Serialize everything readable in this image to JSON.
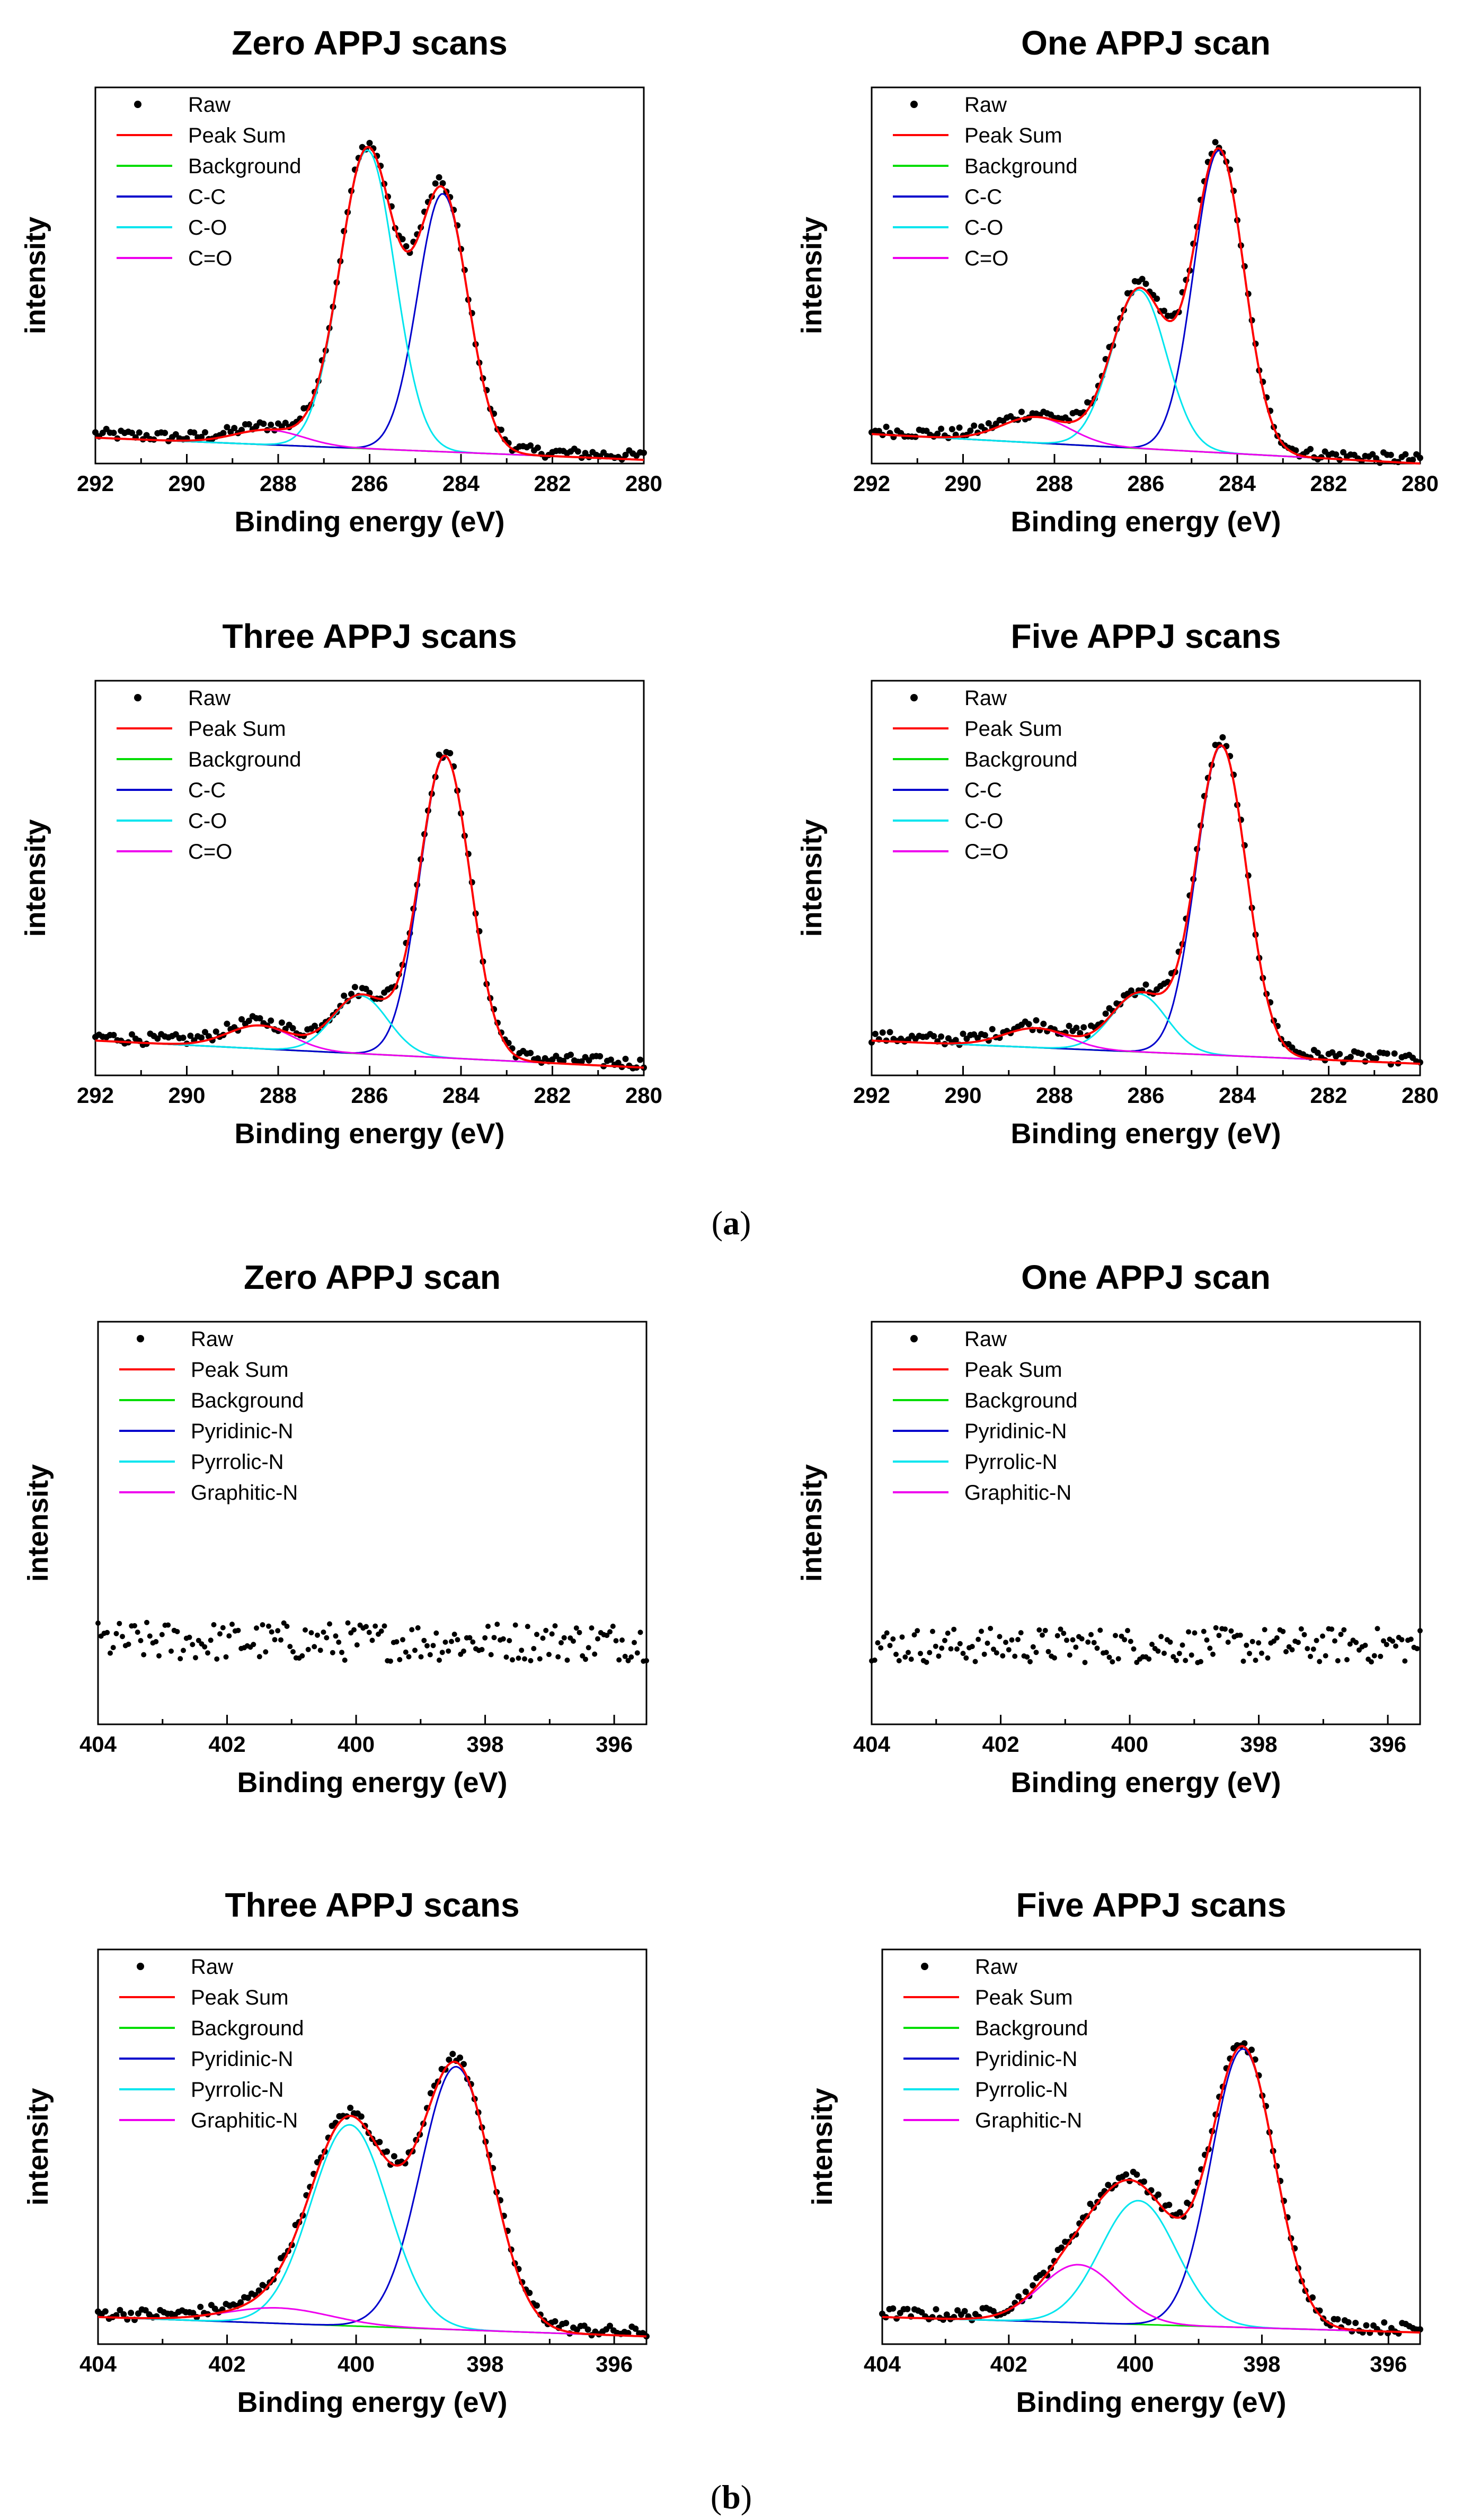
{
  "figure": {
    "caption_a": "a",
    "caption_b": "b"
  },
  "chart_data": [
    {
      "type": "line",
      "title": "Zero APPJ scans",
      "xlabel": "Binding energy (eV)",
      "ylabel": "intensity",
      "xlim": [
        292,
        280
      ],
      "ylim": [
        0,
        1
      ],
      "x_ticks": [
        "292",
        "290",
        "288",
        "286",
        "284",
        "282",
        "280"
      ],
      "legend_position": "top-left",
      "legend": [
        "Raw",
        " Peak Sum",
        "Background",
        "C-C",
        "C-O",
        "C=O"
      ],
      "colors": {
        "raw": "#000000",
        "sum": "#ff0000",
        "background": "#00dd00",
        "c1": "#0000cc",
        "c2": "#00e5ee",
        "c3": "#ee00ee"
      },
      "background": [
        0.07,
        0.01
      ],
      "components": [
        {
          "name": "C-C",
          "center": 284.4,
          "height": 0.7,
          "sigma": 0.55
        },
        {
          "name": "C-O",
          "center": 286.05,
          "height": 0.81,
          "sigma": 0.6
        },
        {
          "name": "C=O",
          "center": 288.2,
          "height": 0.04,
          "sigma": 0.75
        }
      ]
    },
    {
      "type": "line",
      "title": "One APPJ scan",
      "xlabel": "Binding energy (eV)",
      "ylabel": "intensity",
      "xlim": [
        292,
        280
      ],
      "ylim": [
        0,
        1
      ],
      "x_ticks": [
        "292",
        "290",
        "288",
        "286",
        "284",
        "282",
        "280"
      ],
      "legend_position": "top-left",
      "legend": [
        "Raw",
        " Peak Sum",
        "Background",
        "C-C",
        "C-O",
        "C=O"
      ],
      "colors": {
        "raw": "#000000",
        "sum": "#ff0000",
        "background": "#00dd00",
        "c1": "#0000cc",
        "c2": "#00e5ee",
        "c3": "#ee00ee"
      },
      "background": [
        0.08,
        0.0
      ],
      "components": [
        {
          "name": "C-C",
          "center": 284.4,
          "height": 0.82,
          "sigma": 0.55
        },
        {
          "name": "C-O",
          "center": 286.15,
          "height": 0.43,
          "sigma": 0.6
        },
        {
          "name": "C=O",
          "center": 288.4,
          "height": 0.07,
          "sigma": 0.75
        }
      ]
    },
    {
      "type": "line",
      "title": "Three APPJ scans",
      "xlabel": "Binding energy (eV)",
      "ylabel": "intensity",
      "xlim": [
        292,
        280
      ],
      "ylim": [
        0,
        1
      ],
      "x_ticks": [
        "292",
        "290",
        "288",
        "286",
        "284",
        "282",
        "280"
      ],
      "legend_position": "top-left",
      "legend": [
        "Raw",
        " Peak Sum",
        "Background",
        "C-C",
        "C-O",
        "C=O"
      ],
      "colors": {
        "raw": "#000000",
        "sum": "#ff0000",
        "background": "#00dd00",
        "c1": "#0000cc",
        "c2": "#00e5ee",
        "c3": "#ee00ee"
      },
      "background": [
        0.09,
        0.02
      ],
      "components": [
        {
          "name": "C-C",
          "center": 284.35,
          "height": 0.78,
          "sigma": 0.55
        },
        {
          "name": "C-O",
          "center": 286.2,
          "height": 0.15,
          "sigma": 0.6
        },
        {
          "name": "C=O",
          "center": 288.4,
          "height": 0.06,
          "sigma": 0.7
        }
      ]
    },
    {
      "type": "line",
      "title": "Five APPJ scans",
      "xlabel": "Binding energy (eV)",
      "ylabel": "intensity",
      "xlim": [
        292,
        280
      ],
      "ylim": [
        0,
        1
      ],
      "x_ticks": [
        "292",
        "290",
        "288",
        "286",
        "284",
        "282",
        "280"
      ],
      "legend_position": "top-left",
      "legend": [
        "Raw",
        " Peak Sum",
        "Background",
        "C-C",
        "C-O",
        "C=O"
      ],
      "colors": {
        "raw": "#000000",
        "sum": "#ff0000",
        "background": "#00dd00",
        "c1": "#0000cc",
        "c2": "#00e5ee",
        "c3": "#ee00ee"
      },
      "background": [
        0.09,
        0.03
      ],
      "components": [
        {
          "name": "C-C",
          "center": 284.35,
          "height": 0.8,
          "sigma": 0.55
        },
        {
          "name": "C-O",
          "center": 286.15,
          "height": 0.15,
          "sigma": 0.6
        },
        {
          "name": "C=O",
          "center": 288.4,
          "height": 0.05,
          "sigma": 0.7
        }
      ]
    },
    {
      "type": "scatter",
      "title": "Zero APPJ scan",
      "xlabel": "Binding energy (eV)",
      "ylabel": "intensity",
      "xlim": [
        404,
        395.5
      ],
      "ylim": [
        0,
        1
      ],
      "x_ticks": [
        "404",
        "402",
        "400",
        "398",
        "396"
      ],
      "legend_position": "top-left",
      "legend": [
        "Raw",
        " Peak Sum",
        "Background",
        "Pyridinic-N",
        "Pyrrolic-N",
        "Graphitic-N"
      ],
      "colors": {
        "raw": "#000000",
        "sum": "#ff0000",
        "background": "#00dd00",
        "c1": "#0000cc",
        "c2": "#00e5ee",
        "c3": "#ee00ee"
      },
      "background": null,
      "components": [],
      "noise_level": 0.21,
      "noise_amp": 0.05
    },
    {
      "type": "scatter",
      "title": "One APPJ scan",
      "xlabel": "Binding energy (eV)",
      "ylabel": "intensity",
      "xlim": [
        404,
        395.5
      ],
      "ylim": [
        0,
        1
      ],
      "x_ticks": [
        "404",
        "402",
        "400",
        "398",
        "396"
      ],
      "legend_position": "top-left",
      "legend": [
        "Raw",
        " Peak Sum",
        "Background",
        "Pyridinic-N",
        "Pyrrolic-N",
        "Graphitic-N"
      ],
      "colors": {
        "raw": "#000000",
        "sum": "#ff0000",
        "background": "#00dd00",
        "c1": "#0000cc",
        "c2": "#00e5ee",
        "c3": "#ee00ee"
      },
      "background": null,
      "components": [],
      "noise_level": 0.2,
      "noise_amp": 0.045
    },
    {
      "type": "line",
      "title": "Three APPJ scans",
      "xlabel": "Binding energy (eV)",
      "ylabel": "intensity",
      "xlim": [
        404,
        395.5
      ],
      "ylim": [
        0,
        1
      ],
      "x_ticks": [
        "404",
        "402",
        "400",
        "398",
        "396"
      ],
      "legend_position": "top-left",
      "legend": [
        "Raw",
        " Peak Sum",
        "Background",
        "Pyridinic-N",
        "Pyrrolic-N",
        "Graphitic-N"
      ],
      "colors": {
        "raw": "#000000",
        "sum": "#ff0000",
        "background": "#00dd00",
        "c1": "#0000cc",
        "c2": "#00e5ee",
        "c3": "#ee00ee"
      },
      "background": [
        0.07,
        0.02
      ],
      "components": [
        {
          "name": "Pyridinic-N",
          "center": 398.45,
          "height": 0.68,
          "sigma": 0.55
        },
        {
          "name": "Pyrrolic-N",
          "center": 400.1,
          "height": 0.52,
          "sigma": 0.6
        },
        {
          "name": "Graphitic-N",
          "center": 401.2,
          "height": 0.04,
          "sigma": 0.8
        }
      ]
    },
    {
      "type": "line",
      "title": "Five APPJ scans",
      "xlabel": "Binding energy (eV)",
      "ylabel": "intensity",
      "xlim": [
        404,
        395.5
      ],
      "ylim": [
        0,
        1
      ],
      "x_ticks": [
        "404",
        "402",
        "400",
        "398",
        "396"
      ],
      "legend_position": "top-left",
      "legend": [
        "Raw",
        " Peak Sum",
        "Background",
        "Pyridinic-N",
        "Pyrrolic-N",
        "Graphitic-N"
      ],
      "colors": {
        "raw": "#000000",
        "sum": "#ff0000",
        "background": "#00dd00",
        "c1": "#0000cc",
        "c2": "#00e5ee",
        "c3": "#ee00ee"
      },
      "background": [
        0.07,
        0.03
      ],
      "components": [
        {
          "name": "Pyridinic-N",
          "center": 398.3,
          "height": 0.72,
          "sigma": 0.5
        },
        {
          "name": "Pyrrolic-N",
          "center": 399.95,
          "height": 0.32,
          "sigma": 0.6
        },
        {
          "name": "Graphitic-N",
          "center": 400.9,
          "height": 0.15,
          "sigma": 0.6
        }
      ]
    }
  ]
}
